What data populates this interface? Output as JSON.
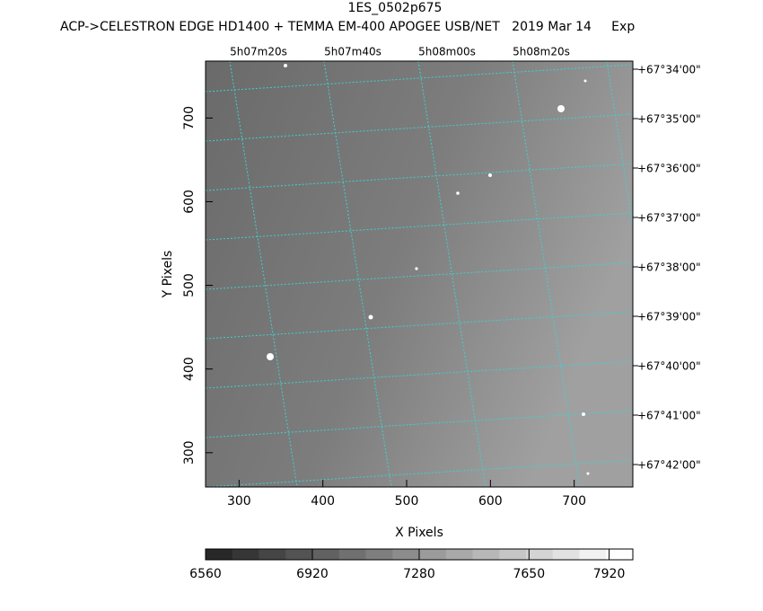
{
  "chart_data": {
    "type": "image",
    "title": "1ES_0502p675",
    "subtitle": "ACP->CELESTRON EDGE HD1400 + TEMMA EM-400 APOGEE USB/NET   2019 Mar 14     Exp",
    "xlabel": "X Pixels",
    "ylabel": "Y Pixels",
    "xlim": [
      260,
      770
    ],
    "ylim": [
      259,
      768
    ],
    "xticks": [
      300,
      400,
      500,
      600,
      700
    ],
    "yticks": [
      300,
      400,
      500,
      600,
      700
    ],
    "ra_labels": [
      "5h07m20s",
      "5h07m40s",
      "5h08m00s",
      "5h08m20s"
    ],
    "dec_labels": [
      "+67°34'00\"",
      "+67°35'00\"",
      "+67°36'00\"",
      "+67°37'00\"",
      "+67°38'00\"",
      "+67°39'00\"",
      "+67°40'00\"",
      "+67°41'00\"",
      "+67°42'00\""
    ],
    "grid_color": "#40d0d0",
    "colorbar": {
      "clim": [
        6560,
        8000
      ],
      "ticks": [
        6560,
        6920,
        7280,
        7650,
        7920
      ]
    }
  }
}
